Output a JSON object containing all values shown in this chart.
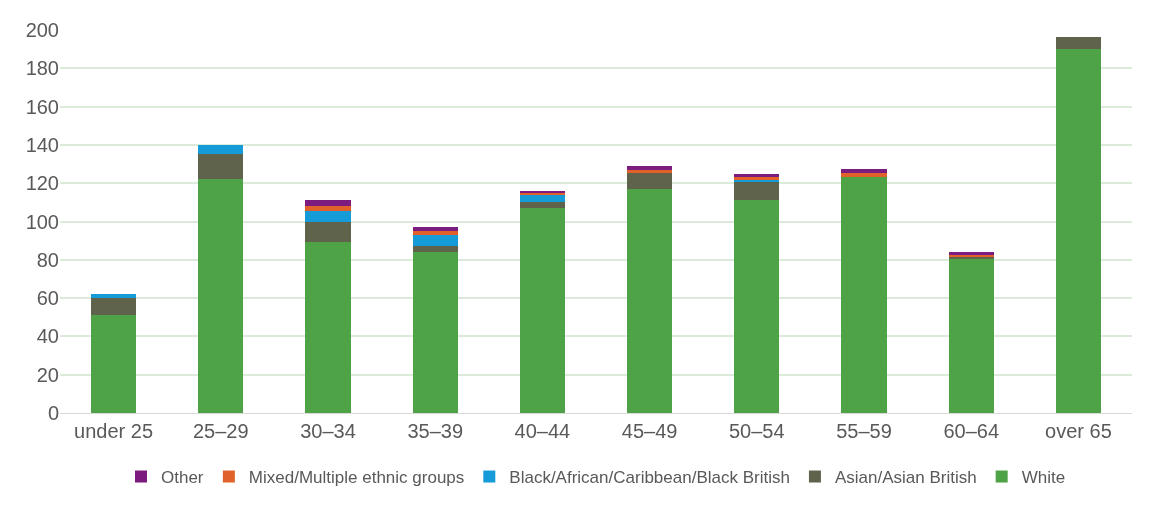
{
  "chart_data": {
    "type": "bar",
    "stacked": true,
    "categories": [
      "under 25",
      "25–29",
      "30–34",
      "35–39",
      "40–44",
      "45–49",
      "50–54",
      "55–59",
      "60–64",
      "over 65"
    ],
    "series": [
      {
        "name": "White",
        "color": "#4ea346",
        "values": [
          51,
          122,
          89.5,
          84,
          107,
          117,
          111,
          123.5,
          80.5,
          190
        ]
      },
      {
        "name": "Asian/Asian British",
        "color": "#5f634c",
        "values": [
          9,
          13,
          10,
          3,
          3,
          8.5,
          10,
          0,
          1,
          6.5
        ]
      },
      {
        "name": "Black/African/Caribbean/Black British",
        "color": "#159cd8",
        "values": [
          2,
          5,
          6,
          6,
          4,
          0,
          1,
          0,
          0,
          0
        ]
      },
      {
        "name": "Mixed/Multiple ethnic groups",
        "color": "#e0622a",
        "values": [
          0,
          0,
          2.5,
          2,
          1,
          1.5,
          1,
          2,
          1,
          0
        ]
      },
      {
        "name": "Other",
        "color": "#7b1c7e",
        "values": [
          0,
          0,
          3,
          2,
          1,
          2,
          2,
          2,
          1.5,
          0
        ]
      }
    ],
    "ylim": [
      0,
      200
    ],
    "yticks": [
      0,
      20,
      40,
      60,
      80,
      100,
      120,
      140,
      160,
      180,
      200
    ],
    "grid": "y",
    "legend": "bottom"
  }
}
